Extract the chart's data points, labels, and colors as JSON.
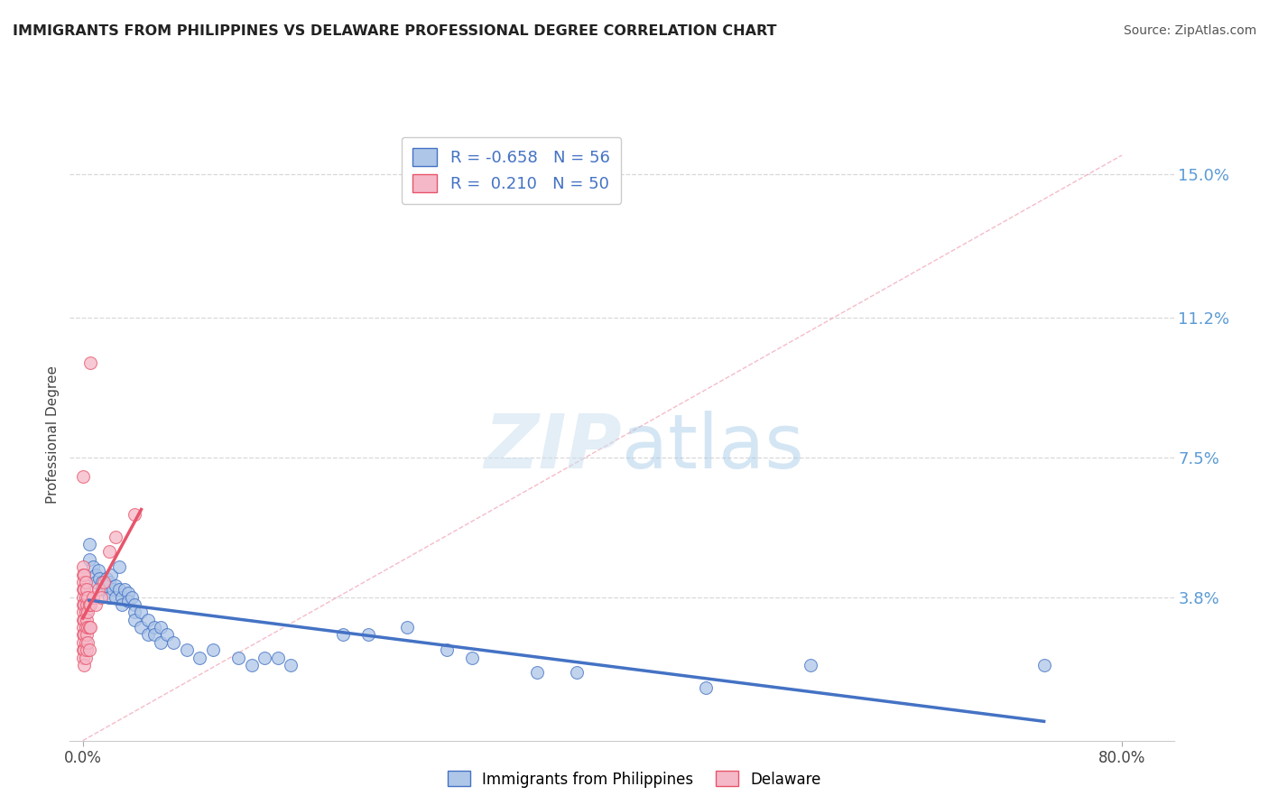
{
  "title": "IMMIGRANTS FROM PHILIPPINES VS DELAWARE PROFESSIONAL DEGREE CORRELATION CHART",
  "source": "Source: ZipAtlas.com",
  "ylabel": "Professional Degree",
  "x_tick_labels": [
    "0.0%",
    "80.0%"
  ],
  "y_tick_labels": [
    "3.8%",
    "7.5%",
    "11.2%",
    "15.0%"
  ],
  "y_tick_values": [
    0.038,
    0.075,
    0.112,
    0.15
  ],
  "x_tick_values": [
    0.0,
    0.8
  ],
  "xlim": [
    -0.01,
    0.84
  ],
  "ylim": [
    0.0,
    0.162
  ],
  "legend_blue_label": "Immigrants from Philippines",
  "legend_pink_label": "Delaware",
  "r_blue": "-0.658",
  "n_blue": "56",
  "r_pink": "0.210",
  "n_pink": "50",
  "blue_color": "#aec6e8",
  "pink_color": "#f5b8c8",
  "blue_line_color": "#4472c4",
  "pink_line_color": "#e8546a",
  "diagonal_color": "#c8c8c8",
  "background_color": "#ffffff",
  "grid_color": "#d8d8d8",
  "blue_scatter": [
    [
      0.005,
      0.052
    ],
    [
      0.005,
      0.048
    ],
    [
      0.008,
      0.046
    ],
    [
      0.01,
      0.044
    ],
    [
      0.01,
      0.042
    ],
    [
      0.012,
      0.045
    ],
    [
      0.013,
      0.043
    ],
    [
      0.015,
      0.042
    ],
    [
      0.015,
      0.04
    ],
    [
      0.018,
      0.043
    ],
    [
      0.018,
      0.041
    ],
    [
      0.02,
      0.042
    ],
    [
      0.02,
      0.038
    ],
    [
      0.022,
      0.044
    ],
    [
      0.023,
      0.04
    ],
    [
      0.025,
      0.041
    ],
    [
      0.025,
      0.038
    ],
    [
      0.028,
      0.046
    ],
    [
      0.028,
      0.04
    ],
    [
      0.03,
      0.038
    ],
    [
      0.03,
      0.036
    ],
    [
      0.032,
      0.04
    ],
    [
      0.035,
      0.039
    ],
    [
      0.035,
      0.037
    ],
    [
      0.038,
      0.038
    ],
    [
      0.04,
      0.036
    ],
    [
      0.04,
      0.034
    ],
    [
      0.04,
      0.032
    ],
    [
      0.045,
      0.034
    ],
    [
      0.045,
      0.03
    ],
    [
      0.05,
      0.032
    ],
    [
      0.05,
      0.028
    ],
    [
      0.055,
      0.03
    ],
    [
      0.055,
      0.028
    ],
    [
      0.06,
      0.03
    ],
    [
      0.06,
      0.026
    ],
    [
      0.065,
      0.028
    ],
    [
      0.07,
      0.026
    ],
    [
      0.08,
      0.024
    ],
    [
      0.09,
      0.022
    ],
    [
      0.1,
      0.024
    ],
    [
      0.12,
      0.022
    ],
    [
      0.13,
      0.02
    ],
    [
      0.14,
      0.022
    ],
    [
      0.15,
      0.022
    ],
    [
      0.16,
      0.02
    ],
    [
      0.2,
      0.028
    ],
    [
      0.22,
      0.028
    ],
    [
      0.25,
      0.03
    ],
    [
      0.28,
      0.024
    ],
    [
      0.3,
      0.022
    ],
    [
      0.35,
      0.018
    ],
    [
      0.38,
      0.018
    ],
    [
      0.48,
      0.014
    ],
    [
      0.56,
      0.02
    ],
    [
      0.74,
      0.02
    ]
  ],
  "pink_scatter": [
    [
      0.0,
      0.046
    ],
    [
      0.0,
      0.044
    ],
    [
      0.0,
      0.042
    ],
    [
      0.0,
      0.04
    ],
    [
      0.0,
      0.038
    ],
    [
      0.0,
      0.036
    ],
    [
      0.0,
      0.034
    ],
    [
      0.0,
      0.032
    ],
    [
      0.0,
      0.03
    ],
    [
      0.0,
      0.028
    ],
    [
      0.0,
      0.026
    ],
    [
      0.0,
      0.024
    ],
    [
      0.0,
      0.022
    ],
    [
      0.001,
      0.044
    ],
    [
      0.001,
      0.04
    ],
    [
      0.001,
      0.036
    ],
    [
      0.001,
      0.032
    ],
    [
      0.001,
      0.028
    ],
    [
      0.001,
      0.024
    ],
    [
      0.001,
      0.02
    ],
    [
      0.002,
      0.042
    ],
    [
      0.002,
      0.038
    ],
    [
      0.002,
      0.034
    ],
    [
      0.002,
      0.03
    ],
    [
      0.002,
      0.026
    ],
    [
      0.002,
      0.022
    ],
    [
      0.003,
      0.04
    ],
    [
      0.003,
      0.036
    ],
    [
      0.003,
      0.032
    ],
    [
      0.003,
      0.028
    ],
    [
      0.003,
      0.024
    ],
    [
      0.004,
      0.038
    ],
    [
      0.004,
      0.034
    ],
    [
      0.004,
      0.03
    ],
    [
      0.004,
      0.026
    ],
    [
      0.005,
      0.036
    ],
    [
      0.005,
      0.03
    ],
    [
      0.005,
      0.024
    ],
    [
      0.006,
      0.1
    ],
    [
      0.006,
      0.036
    ],
    [
      0.006,
      0.03
    ],
    [
      0.008,
      0.038
    ],
    [
      0.01,
      0.036
    ],
    [
      0.012,
      0.04
    ],
    [
      0.014,
      0.038
    ],
    [
      0.016,
      0.042
    ],
    [
      0.02,
      0.05
    ],
    [
      0.025,
      0.054
    ],
    [
      0.0,
      0.07
    ],
    [
      0.04,
      0.06
    ]
  ]
}
